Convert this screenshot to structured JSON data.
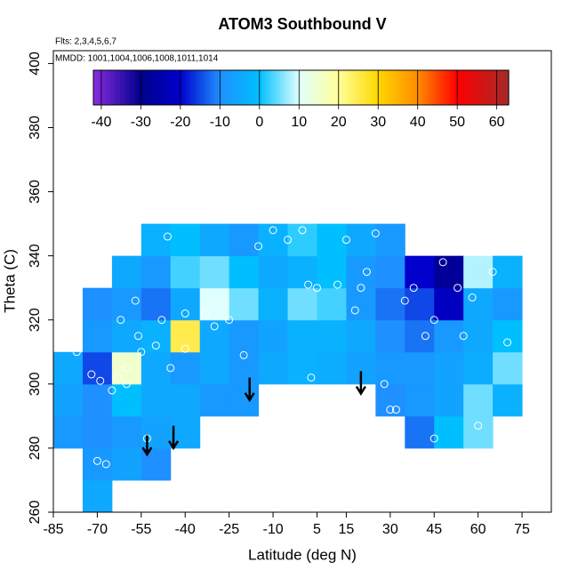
{
  "chart_data": {
    "type": "heatmap",
    "title": "ATOM3 Southbound V",
    "subtitle": "Flts: 2,3,4,5,6,7",
    "annotation": "MMDD: 1001,1004,1006,1008,1011,1014",
    "x_label": "Latitude (deg N)",
    "y_label": "Theta (C)",
    "xlim": [
      -85,
      85
    ],
    "ylim": [
      260,
      404
    ],
    "xticks": [
      -85,
      -70,
      -55,
      -40,
      -25,
      -10,
      5,
      15,
      30,
      45,
      60,
      75
    ],
    "yticks": [
      260,
      280,
      300,
      320,
      340,
      360,
      380,
      400
    ],
    "x": [
      -80,
      -70,
      -60,
      -50,
      -40,
      -30,
      -20,
      -10,
      0,
      10,
      20,
      30,
      40,
      50,
      60,
      70
    ],
    "y": [
      265,
      275,
      285,
      295,
      305,
      315,
      325,
      335,
      345
    ],
    "cell_size": [
      10,
      10
    ],
    "values": [
      [
        null,
        -5,
        null,
        null,
        null,
        null,
        null,
        null,
        null,
        null,
        null,
        null,
        null,
        null,
        null,
        null
      ],
      [
        null,
        -8,
        -6,
        -10,
        null,
        null,
        null,
        null,
        null,
        null,
        null,
        null,
        null,
        null,
        null,
        null
      ],
      [
        -8,
        -10,
        -8,
        -6,
        -5,
        null,
        null,
        null,
        null,
        null,
        null,
        null,
        -12,
        0,
        5,
        null
      ],
      [
        -6,
        -10,
        0,
        -5,
        -5,
        -8,
        -8,
        null,
        null,
        null,
        null,
        -10,
        -8,
        -6,
        5,
        -3
      ],
      [
        -5,
        -15,
        15,
        -5,
        -8,
        -5,
        -8,
        -5,
        -3,
        -4,
        -6,
        -8,
        -8,
        -6,
        -4,
        5
      ],
      [
        null,
        -8,
        -5,
        -3,
        25,
        -5,
        -8,
        -6,
        -3,
        -3,
        -5,
        -10,
        -12,
        -8,
        -5,
        0
      ],
      [
        null,
        -10,
        -8,
        -12,
        -5,
        10,
        5,
        -3,
        5,
        3,
        -8,
        -12,
        -15,
        -22,
        -5,
        -8
      ],
      [
        null,
        null,
        -5,
        -8,
        3,
        5,
        0,
        -5,
        -3,
        0,
        -8,
        -10,
        -20,
        -28,
        8,
        -3
      ],
      [
        null,
        null,
        null,
        -3,
        0,
        -5,
        -8,
        -3,
        2,
        0,
        -5,
        -8,
        null,
        null,
        null,
        null
      ]
    ],
    "colorscale": {
      "values": [
        -42,
        -30,
        -20,
        -10,
        0,
        10,
        20,
        30,
        40,
        50,
        63
      ],
      "colors": [
        "#8a2be2",
        "#00008b",
        "#0000cd",
        "#1e90ff",
        "#00bfff",
        "#e0ffff",
        "#ffff99",
        "#ffd700",
        "#ff8c00",
        "#ff0000",
        "#a52a2a"
      ]
    },
    "colorbar_lim": [
      -42,
      63
    ],
    "colorbar_ticks": [
      -40,
      -30,
      -20,
      -10,
      0,
      10,
      20,
      30,
      40,
      50,
      60
    ],
    "points": {
      "color": "#ffffff",
      "x": [
        -77,
        -70,
        -67,
        -69,
        -72,
        -65,
        -63,
        -60,
        -60,
        -62,
        -57,
        -55,
        -56,
        -53,
        -50,
        -48,
        -46,
        -45,
        -40,
        -40,
        -33,
        -30,
        -25,
        -20,
        -15,
        -10,
        -5,
        0,
        2,
        5,
        3,
        12,
        15,
        18,
        20,
        22,
        25,
        28,
        30,
        32,
        35,
        38,
        42,
        45,
        48,
        53,
        55,
        58,
        65,
        70,
        45,
        60
      ],
      "y": [
        310,
        276,
        275,
        301,
        303,
        298,
        302,
        300,
        305,
        320,
        326,
        310,
        315,
        283,
        312,
        320,
        346,
        305,
        311,
        322,
        322,
        318,
        320,
        309,
        343,
        348,
        345,
        348,
        331,
        330,
        302,
        331,
        345,
        323,
        330,
        335,
        347,
        300,
        292,
        292,
        326,
        330,
        315,
        320,
        338,
        330,
        315,
        327,
        335,
        313,
        283,
        287
      ]
    },
    "arrows": {
      "color": "#000000",
      "x": [
        -53,
        -44,
        -18,
        20
      ],
      "y1": [
        284,
        287,
        302,
        304
      ],
      "y2": [
        278,
        280,
        295,
        297
      ]
    }
  }
}
